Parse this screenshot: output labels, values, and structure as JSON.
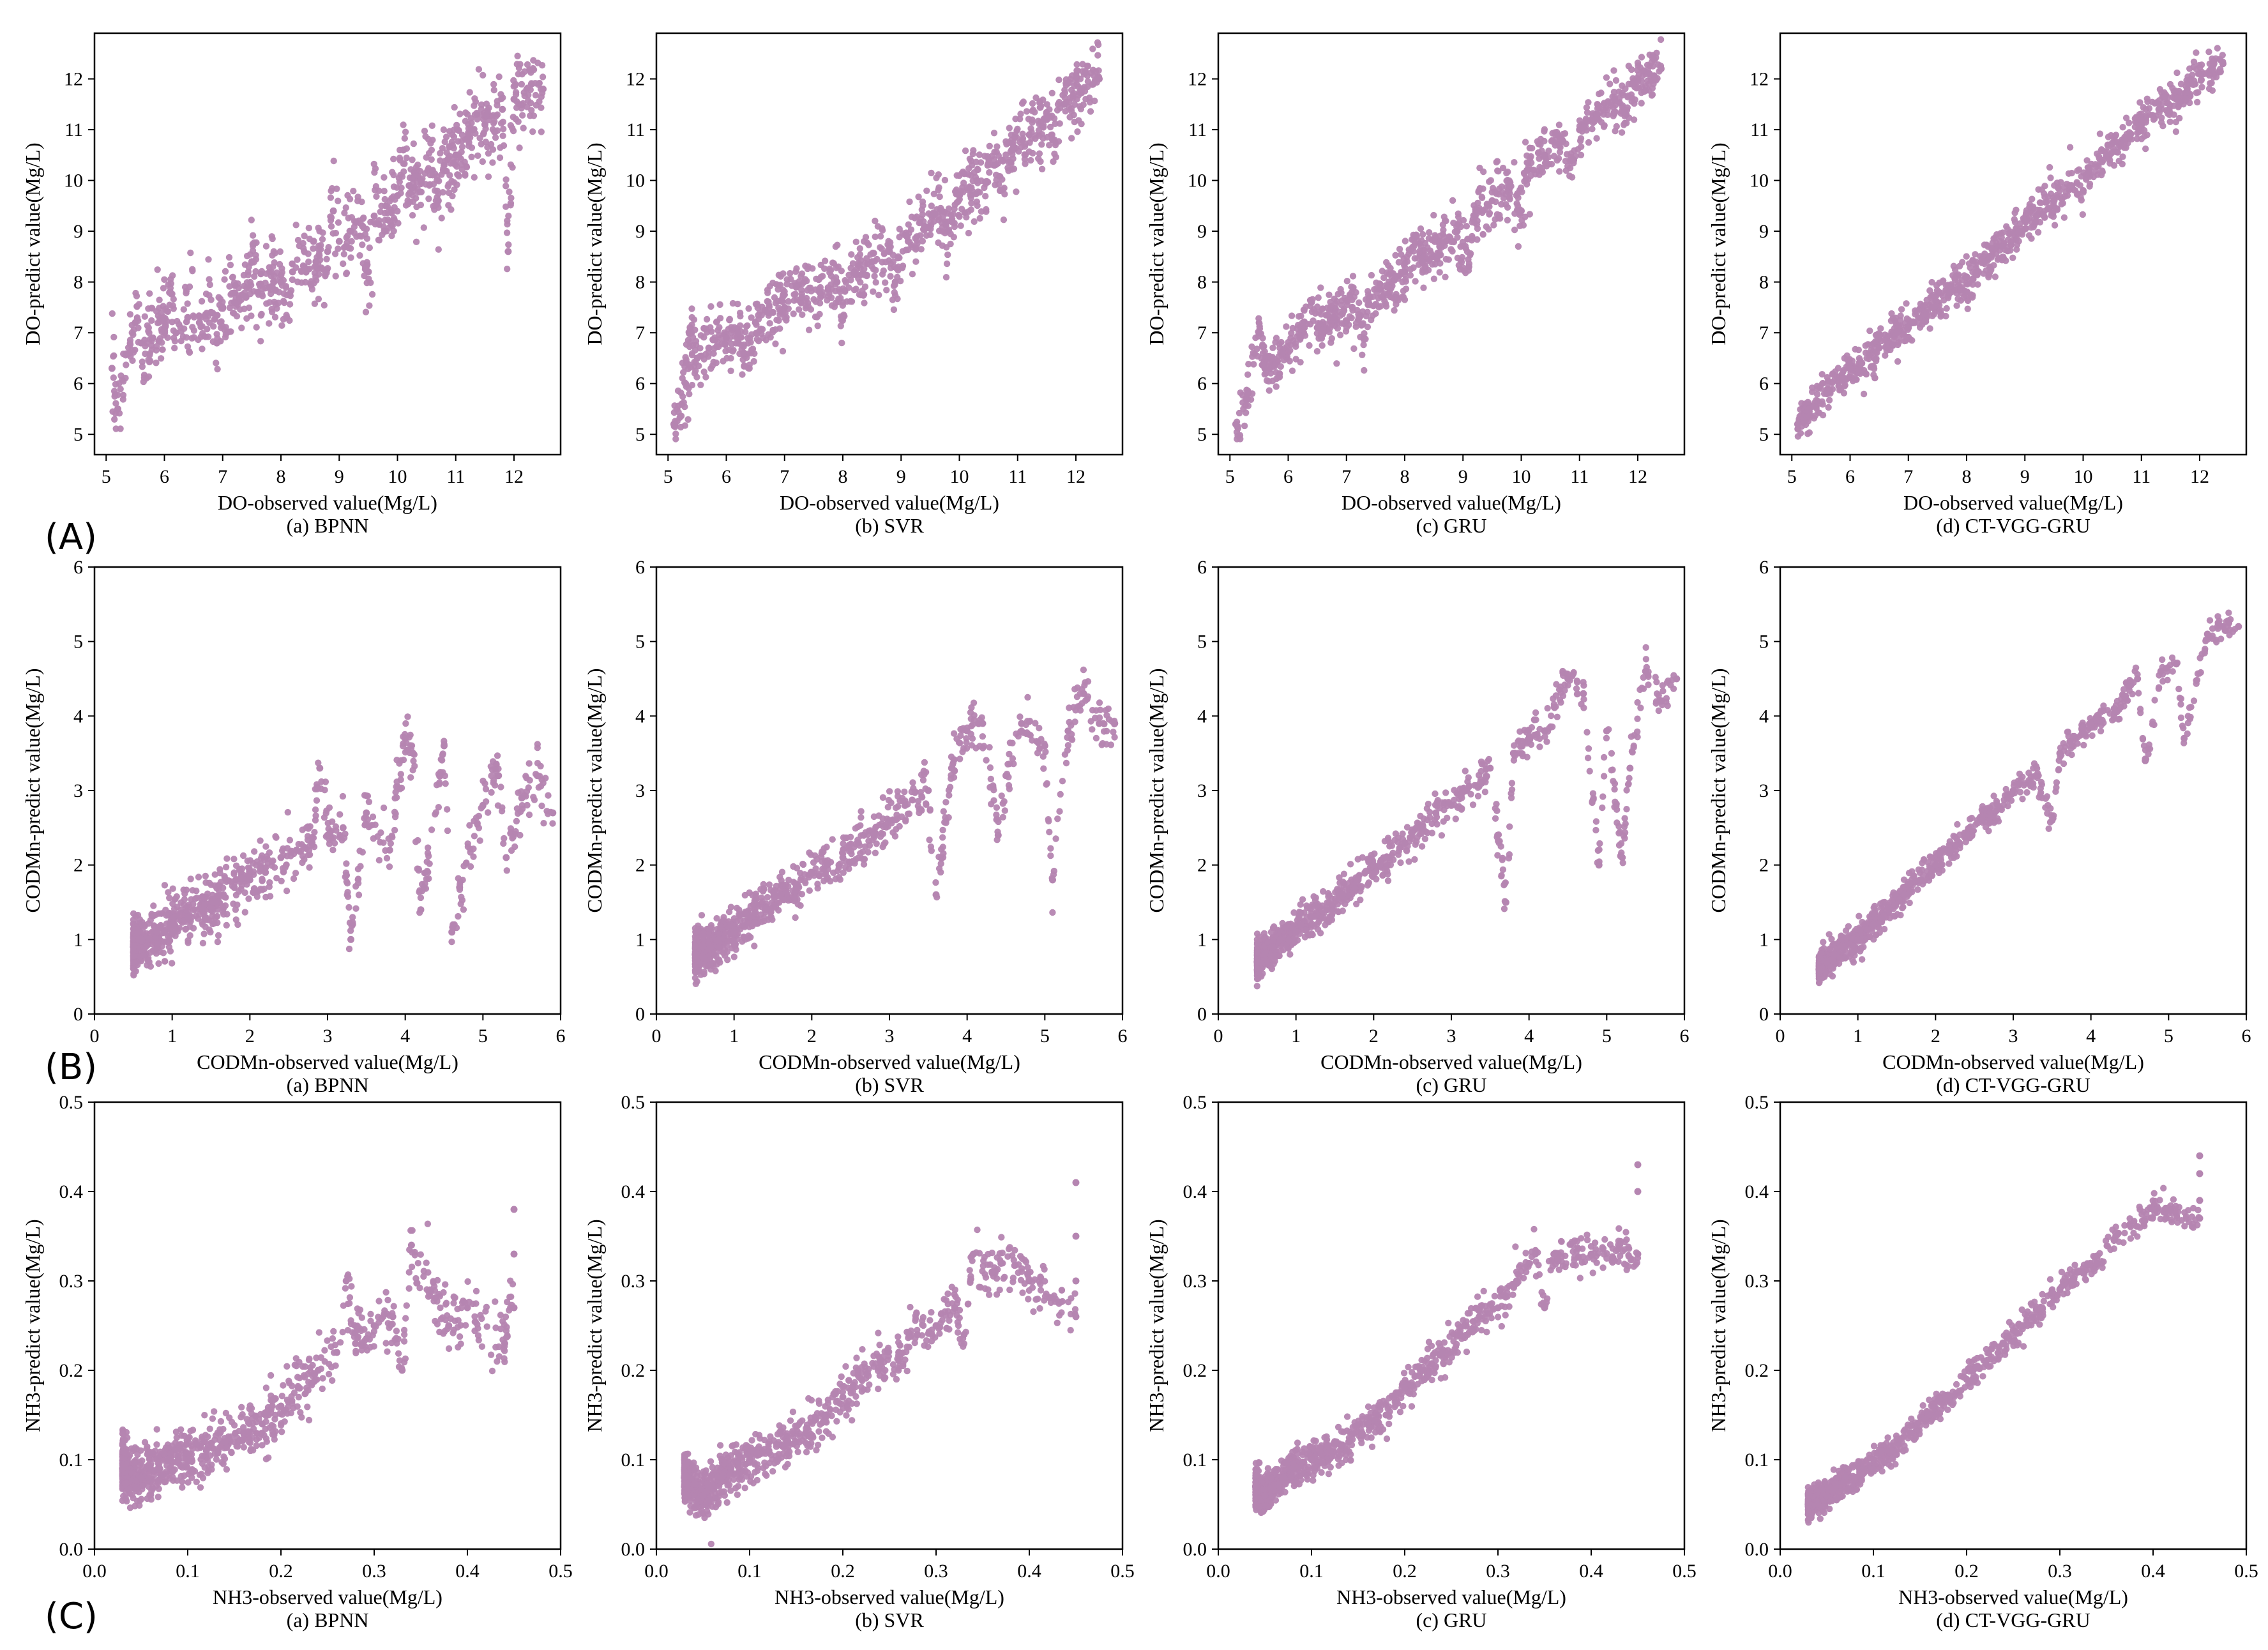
{
  "figure": {
    "rows": [
      {
        "label": "(A)",
        "variable": "DO",
        "xlabel": "DO-observed value(Mg/L)",
        "ylabel": "DO-predict value(Mg/L)",
        "xlim": [
          4.8,
          12.8
        ],
        "ylim": [
          4.6,
          12.9
        ],
        "xticks": [
          5,
          6,
          7,
          8,
          9,
          10,
          11,
          12
        ],
        "yticks": [
          5,
          6,
          7,
          8,
          9,
          10,
          11,
          12
        ],
        "tick_labels_x": [
          "5",
          "6",
          "7",
          "8",
          "9",
          "10",
          "11",
          "12"
        ],
        "tick_labels_y": [
          "5",
          "6",
          "7",
          "8",
          "9",
          "10",
          "11",
          "12"
        ],
        "panels": [
          {
            "caption": "(a) BPNN"
          },
          {
            "caption": "(b) SVR"
          },
          {
            "caption": "(c) GRU"
          },
          {
            "caption": "(d) CT-VGG-GRU"
          }
        ]
      },
      {
        "label": "(B)",
        "variable": "CODMn",
        "xlabel": "CODMn-observed value(Mg/L)",
        "ylabel": "CODMn-predict value(Mg/L)",
        "xlim": [
          0,
          6
        ],
        "ylim": [
          0,
          6
        ],
        "xticks": [
          0,
          1,
          2,
          3,
          4,
          5,
          6
        ],
        "yticks": [
          0,
          1,
          2,
          3,
          4,
          5,
          6
        ],
        "tick_labels_x": [
          "0",
          "1",
          "2",
          "3",
          "4",
          "5",
          "6"
        ],
        "tick_labels_y": [
          "0",
          "1",
          "2",
          "3",
          "4",
          "5",
          "6"
        ],
        "panels": [
          {
            "caption": "(a)  BPNN"
          },
          {
            "caption": "(b) SVR"
          },
          {
            "caption": "(c) GRU"
          },
          {
            "caption": "(d) CT-VGG-GRU"
          }
        ]
      },
      {
        "label": "(C)",
        "variable": "NH3",
        "xlabel": "NH3-observed value(Mg/L)",
        "ylabel": "NH3-predict value(Mg/L)",
        "xlim": [
          0,
          0.5
        ],
        "ylim": [
          0,
          0.5
        ],
        "xticks": [
          0,
          0.1,
          0.2,
          0.3,
          0.4,
          0.5
        ],
        "yticks": [
          0,
          0.1,
          0.2,
          0.3,
          0.4,
          0.5
        ],
        "tick_labels_x": [
          "0.0",
          "0.1",
          "0.2",
          "0.3",
          "0.4",
          "0.5"
        ],
        "tick_labels_y": [
          "0.0",
          "0.1",
          "0.2",
          "0.3",
          "0.4",
          "0.5"
        ],
        "panels": [
          {
            "caption": "(a) BPNN"
          },
          {
            "caption": "(b) SVR"
          },
          {
            "caption": "(c) GRU"
          },
          {
            "caption": "(d) CT-VGG-GRU"
          }
        ]
      }
    ]
  },
  "chart_data": [
    {
      "type": "scatter",
      "variable": "DO",
      "model": "BPNN",
      "xlabel": "DO-observed value(Mg/L)",
      "ylabel": "DO-predict value(Mg/L)",
      "xlim": [
        4.8,
        12.8
      ],
      "ylim": [
        4.6,
        12.9
      ],
      "marker_color": "#B585B1",
      "x": [
        5.1,
        5.2,
        5.4,
        5.6,
        5.8,
        6.0,
        6.2,
        6.4,
        6.6,
        6.8,
        7.0,
        7.2,
        7.4,
        7.6,
        7.8,
        8.0,
        8.2,
        8.4,
        8.6,
        8.8,
        9.0,
        9.2,
        9.4,
        9.6,
        9.8,
        10.0,
        10.2,
        10.4,
        10.6,
        10.8,
        11.0,
        11.2,
        11.5,
        11.8,
        12.0,
        12.3,
        11.9,
        5.5,
        6.1,
        6.9,
        7.5,
        8.1,
        8.9,
        9.5,
        10.1,
        10.7,
        11.3,
        12.5
      ],
      "y": [
        6.3,
        5.5,
        6.6,
        6.8,
        6.9,
        7.1,
        7.0,
        7.3,
        7.2,
        7.4,
        7.5,
        7.6,
        7.7,
        7.8,
        7.9,
        8.0,
        8.2,
        8.3,
        8.4,
        8.6,
        8.8,
        9.0,
        9.1,
        9.3,
        9.5,
        9.7,
        9.9,
        10.0,
        10.2,
        10.3,
        10.5,
        10.8,
        11.1,
        11.4,
        11.6,
        11.9,
        8.6,
        7.2,
        7.8,
        6.8,
        8.4,
        7.3,
        9.4,
        8.2,
        10.6,
        9.6,
        11.0,
        11.8
      ]
    },
    {
      "type": "scatter",
      "variable": "DO",
      "model": "SVR",
      "xlabel": "DO-observed value(Mg/L)",
      "ylabel": "DO-predict value(Mg/L)",
      "xlim": [
        4.8,
        12.8
      ],
      "ylim": [
        4.6,
        12.9
      ],
      "marker_color": "#B585B1",
      "x": [
        5.1,
        5.3,
        5.5,
        5.7,
        6.0,
        6.2,
        6.5,
        6.8,
        7.0,
        7.3,
        7.6,
        7.9,
        8.2,
        8.5,
        8.8,
        9.1,
        9.4,
        9.7,
        10.0,
        10.3,
        10.6,
        10.9,
        11.2,
        11.5,
        11.8,
        12.1,
        12.4,
        5.4,
        6.3,
        7.2,
        8.0,
        8.9,
        9.8,
        10.7,
        11.6
      ],
      "y": [
        5.2,
        6.0,
        6.5,
        6.7,
        6.9,
        7.0,
        7.2,
        7.4,
        7.5,
        7.7,
        7.8,
        8.0,
        8.2,
        8.4,
        8.6,
        8.9,
        9.1,
        9.4,
        9.7,
        10.0,
        10.3,
        10.6,
        10.9,
        11.2,
        11.5,
        11.8,
        12.0,
        7.0,
        6.6,
        7.9,
        7.3,
        8.0,
        9.0,
        9.8,
        10.8
      ]
    },
    {
      "type": "scatter",
      "variable": "DO",
      "model": "GRU",
      "xlabel": "DO-observed value(Mg/L)",
      "ylabel": "DO-predict value(Mg/L)",
      "xlim": [
        4.8,
        12.8
      ],
      "ylim": [
        4.6,
        12.9
      ],
      "marker_color": "#B585B1",
      "x": [
        5.1,
        5.3,
        5.6,
        5.9,
        6.2,
        6.5,
        6.8,
        7.1,
        7.4,
        7.7,
        8.0,
        8.3,
        8.6,
        8.9,
        9.2,
        9.5,
        9.8,
        10.1,
        10.4,
        10.7,
        11.0,
        11.3,
        11.6,
        11.9,
        12.2,
        12.4,
        5.5,
        6.4,
        7.3,
        8.2,
        9.1,
        10.0,
        10.9,
        11.8
      ],
      "y": [
        5.2,
        5.8,
        6.3,
        6.6,
        6.9,
        7.1,
        7.3,
        7.5,
        7.7,
        7.9,
        8.2,
        8.4,
        8.7,
        9.0,
        9.3,
        9.6,
        9.9,
        10.2,
        10.5,
        10.8,
        11.0,
        11.3,
        11.6,
        11.9,
        12.1,
        12.2,
        7.0,
        7.6,
        6.9,
        8.9,
        8.3,
        9.4,
        10.4,
        11.3
      ]
    },
    {
      "type": "scatter",
      "variable": "DO",
      "model": "CT-VGG-GRU",
      "xlabel": "DO-observed value(Mg/L)",
      "ylabel": "DO-predict value(Mg/L)",
      "xlim": [
        4.8,
        12.8
      ],
      "ylim": [
        4.6,
        12.9
      ],
      "marker_color": "#B585B1",
      "x": [
        5.1,
        5.3,
        5.6,
        5.9,
        6.2,
        6.5,
        6.8,
        7.1,
        7.4,
        7.7,
        8.0,
        8.3,
        8.6,
        8.9,
        9.2,
        9.5,
        9.8,
        10.1,
        10.4,
        10.7,
        11.0,
        11.3,
        11.6,
        11.9,
        12.2,
        12.4,
        6.0,
        7.0,
        8.0,
        9.0,
        10.0,
        11.0,
        12.0
      ],
      "y": [
        5.2,
        5.5,
        5.8,
        6.1,
        6.4,
        6.7,
        7.0,
        7.2,
        7.5,
        7.8,
        8.1,
        8.4,
        8.7,
        9.0,
        9.3,
        9.6,
        9.9,
        10.2,
        10.5,
        10.8,
        11.1,
        11.4,
        11.6,
        11.9,
        12.2,
        12.3,
        6.3,
        7.1,
        7.8,
        9.2,
        9.8,
        11.2,
        12.1
      ]
    },
    {
      "type": "scatter",
      "variable": "CODMn",
      "model": "BPNN",
      "xlabel": "CODMn-observed value(Mg/L)",
      "ylabel": "CODMn-predict value(Mg/L)",
      "xlim": [
        0,
        6
      ],
      "ylim": [
        0,
        6
      ],
      "marker_color": "#B585B1",
      "x": [
        0.5,
        0.6,
        0.7,
        0.8,
        0.9,
        1.0,
        1.2,
        1.4,
        1.6,
        1.8,
        2.0,
        2.2,
        2.4,
        2.6,
        2.8,
        3.0,
        3.2,
        3.5,
        3.8,
        4.0,
        4.2,
        4.5,
        4.7,
        5.0,
        5.2,
        5.5,
        5.7,
        5.9,
        3.3,
        4.1,
        2.9,
        4.6,
        5.3
      ],
      "y": [
        0.9,
        1.0,
        1.0,
        1.1,
        1.1,
        1.2,
        1.3,
        1.4,
        1.5,
        1.7,
        1.8,
        1.9,
        2.1,
        2.2,
        2.3,
        2.4,
        2.5,
        2.7,
        2.2,
        3.7,
        1.4,
        3.6,
        1.7,
        2.8,
        3.2,
        2.9,
        3.2,
        2.7,
        1.0,
        3.5,
        3.3,
        1.1,
        2.1
      ]
    },
    {
      "type": "scatter",
      "variable": "CODMn",
      "model": "SVR",
      "xlabel": "CODMn-observed value(Mg/L)",
      "ylabel": "CODMn-predict value(Mg/L)",
      "xlim": [
        0,
        6
      ],
      "ylim": [
        0,
        6
      ],
      "marker_color": "#B585B1",
      "x": [
        0.5,
        0.6,
        0.7,
        0.8,
        1.0,
        1.2,
        1.4,
        1.6,
        1.8,
        2.0,
        2.2,
        2.4,
        2.6,
        2.8,
        3.0,
        3.2,
        3.5,
        3.8,
        4.0,
        4.2,
        4.5,
        4.7,
        5.0,
        5.3,
        5.5,
        5.7,
        5.9,
        3.6,
        4.4,
        5.1
      ],
      "y": [
        0.8,
        0.9,
        0.9,
        1.0,
        1.1,
        1.3,
        1.4,
        1.6,
        1.7,
        1.9,
        2.0,
        2.1,
        2.3,
        2.4,
        2.6,
        2.8,
        3.0,
        3.3,
        3.8,
        3.9,
        3.2,
        3.9,
        3.6,
        3.8,
        4.3,
        3.9,
        3.9,
        1.6,
        2.4,
        1.8
      ]
    },
    {
      "type": "scatter",
      "variable": "CODMn",
      "model": "GRU",
      "xlabel": "CODMn-observed value(Mg/L)",
      "ylabel": "CODMn-predict value(Mg/L)",
      "xlim": [
        0,
        6
      ],
      "ylim": [
        0,
        6
      ],
      "marker_color": "#B585B1",
      "x": [
        0.5,
        0.6,
        0.7,
        0.8,
        1.0,
        1.2,
        1.4,
        1.6,
        1.8,
        2.0,
        2.2,
        2.4,
        2.6,
        2.8,
        3.0,
        3.2,
        3.5,
        3.8,
        4.0,
        4.2,
        4.5,
        4.7,
        5.0,
        5.3,
        5.5,
        5.7,
        5.9,
        3.7,
        4.9,
        5.2
      ],
      "y": [
        0.7,
        0.8,
        0.9,
        1.0,
        1.1,
        1.3,
        1.4,
        1.6,
        1.8,
        2.0,
        2.1,
        2.3,
        2.5,
        2.7,
        2.8,
        3.0,
        3.3,
        3.5,
        3.7,
        3.8,
        4.5,
        4.3,
        3.8,
        3.3,
        4.6,
        4.2,
        4.5,
        1.5,
        2.0,
        2.1
      ]
    },
    {
      "type": "scatter",
      "variable": "CODMn",
      "model": "CT-VGG-GRU",
      "xlabel": "CODMn-observed value(Mg/L)",
      "ylabel": "CODMn-predict value(Mg/L)",
      "xlim": [
        0,
        6
      ],
      "ylim": [
        0,
        6
      ],
      "marker_color": "#B585B1",
      "x": [
        0.5,
        0.6,
        0.7,
        0.8,
        1.0,
        1.2,
        1.4,
        1.6,
        1.8,
        2.0,
        2.2,
        2.4,
        2.6,
        2.8,
        3.0,
        3.3,
        3.6,
        4.0,
        4.3,
        4.6,
        4.9,
        5.2,
        5.5,
        5.7,
        5.9,
        3.5,
        4.7,
        5.1
      ],
      "y": [
        0.6,
        0.7,
        0.8,
        0.9,
        1.0,
        1.2,
        1.4,
        1.6,
        1.8,
        2.0,
        2.2,
        2.4,
        2.6,
        2.8,
        3.0,
        3.2,
        3.5,
        3.9,
        4.1,
        4.5,
        4.6,
        3.7,
        5.1,
        5.2,
        5.2,
        2.6,
        3.4,
        4.7
      ]
    },
    {
      "type": "scatter",
      "variable": "NH3",
      "model": "BPNN",
      "xlabel": "NH3-observed value(Mg/L)",
      "ylabel": "NH3-predict value(Mg/L)",
      "xlim": [
        0,
        0.5
      ],
      "ylim": [
        0,
        0.5
      ],
      "marker_color": "#B585B1",
      "x": [
        0.03,
        0.05,
        0.06,
        0.07,
        0.08,
        0.09,
        0.1,
        0.12,
        0.14,
        0.16,
        0.18,
        0.2,
        0.22,
        0.24,
        0.26,
        0.28,
        0.3,
        0.32,
        0.34,
        0.36,
        0.38,
        0.4,
        0.44,
        0.45,
        0.45,
        0.45,
        0.33,
        0.27
      ],
      "y": [
        0.09,
        0.08,
        0.09,
        0.09,
        0.1,
        0.1,
        0.1,
        0.11,
        0.12,
        0.13,
        0.14,
        0.16,
        0.18,
        0.2,
        0.22,
        0.23,
        0.25,
        0.26,
        0.34,
        0.29,
        0.25,
        0.27,
        0.23,
        0.33,
        0.38,
        0.27,
        0.2,
        0.3
      ]
    },
    {
      "type": "scatter",
      "variable": "NH3",
      "model": "SVR",
      "xlabel": "NH3-observed value(Mg/L)",
      "ylabel": "NH3-predict value(Mg/L)",
      "xlim": [
        0,
        0.5
      ],
      "ylim": [
        0,
        0.5
      ],
      "marker_color": "#B585B1",
      "x": [
        0.03,
        0.05,
        0.06,
        0.07,
        0.08,
        0.1,
        0.12,
        0.14,
        0.16,
        0.18,
        0.2,
        0.22,
        0.24,
        0.26,
        0.28,
        0.3,
        0.32,
        0.34,
        0.36,
        0.4,
        0.45,
        0.45,
        0.45,
        0.45,
        0.33,
        0.37
      ],
      "y": [
        0.08,
        0.06,
        0.07,
        0.08,
        0.09,
        0.1,
        0.11,
        0.12,
        0.13,
        0.15,
        0.17,
        0.19,
        0.21,
        0.22,
        0.24,
        0.25,
        0.27,
        0.33,
        0.31,
        0.3,
        0.26,
        0.3,
        0.35,
        0.41,
        0.24,
        0.32
      ]
    },
    {
      "type": "scatter",
      "variable": "NH3",
      "model": "GRU",
      "xlabel": "NH3-observed value(Mg/L)",
      "ylabel": "NH3-predict value(Mg/L)",
      "xlim": [
        0,
        0.5
      ],
      "ylim": [
        0,
        0.5
      ],
      "marker_color": "#B585B1",
      "x": [
        0.04,
        0.05,
        0.06,
        0.07,
        0.08,
        0.1,
        0.12,
        0.14,
        0.16,
        0.18,
        0.2,
        0.22,
        0.24,
        0.26,
        0.28,
        0.3,
        0.32,
        0.34,
        0.36,
        0.4,
        0.45,
        0.45,
        0.45,
        0.35
      ],
      "y": [
        0.07,
        0.06,
        0.07,
        0.08,
        0.09,
        0.1,
        0.11,
        0.12,
        0.14,
        0.15,
        0.18,
        0.2,
        0.22,
        0.24,
        0.26,
        0.27,
        0.3,
        0.33,
        0.33,
        0.33,
        0.33,
        0.4,
        0.43,
        0.27
      ]
    },
    {
      "type": "scatter",
      "variable": "NH3",
      "model": "CT-VGG-GRU",
      "xlabel": "NH3-observed value(Mg/L)",
      "ylabel": "NH3-predict value(Mg/L)",
      "xlim": [
        0,
        0.5
      ],
      "ylim": [
        0,
        0.5
      ],
      "marker_color": "#B585B1",
      "x": [
        0.03,
        0.05,
        0.06,
        0.07,
        0.08,
        0.1,
        0.12,
        0.14,
        0.16,
        0.18,
        0.2,
        0.22,
        0.24,
        0.26,
        0.28,
        0.3,
        0.32,
        0.34,
        0.36,
        0.4,
        0.45,
        0.45,
        0.45,
        0.45
      ],
      "y": [
        0.05,
        0.06,
        0.07,
        0.08,
        0.08,
        0.1,
        0.11,
        0.13,
        0.15,
        0.17,
        0.19,
        0.21,
        0.23,
        0.25,
        0.27,
        0.29,
        0.31,
        0.32,
        0.35,
        0.38,
        0.37,
        0.39,
        0.42,
        0.44
      ]
    }
  ]
}
